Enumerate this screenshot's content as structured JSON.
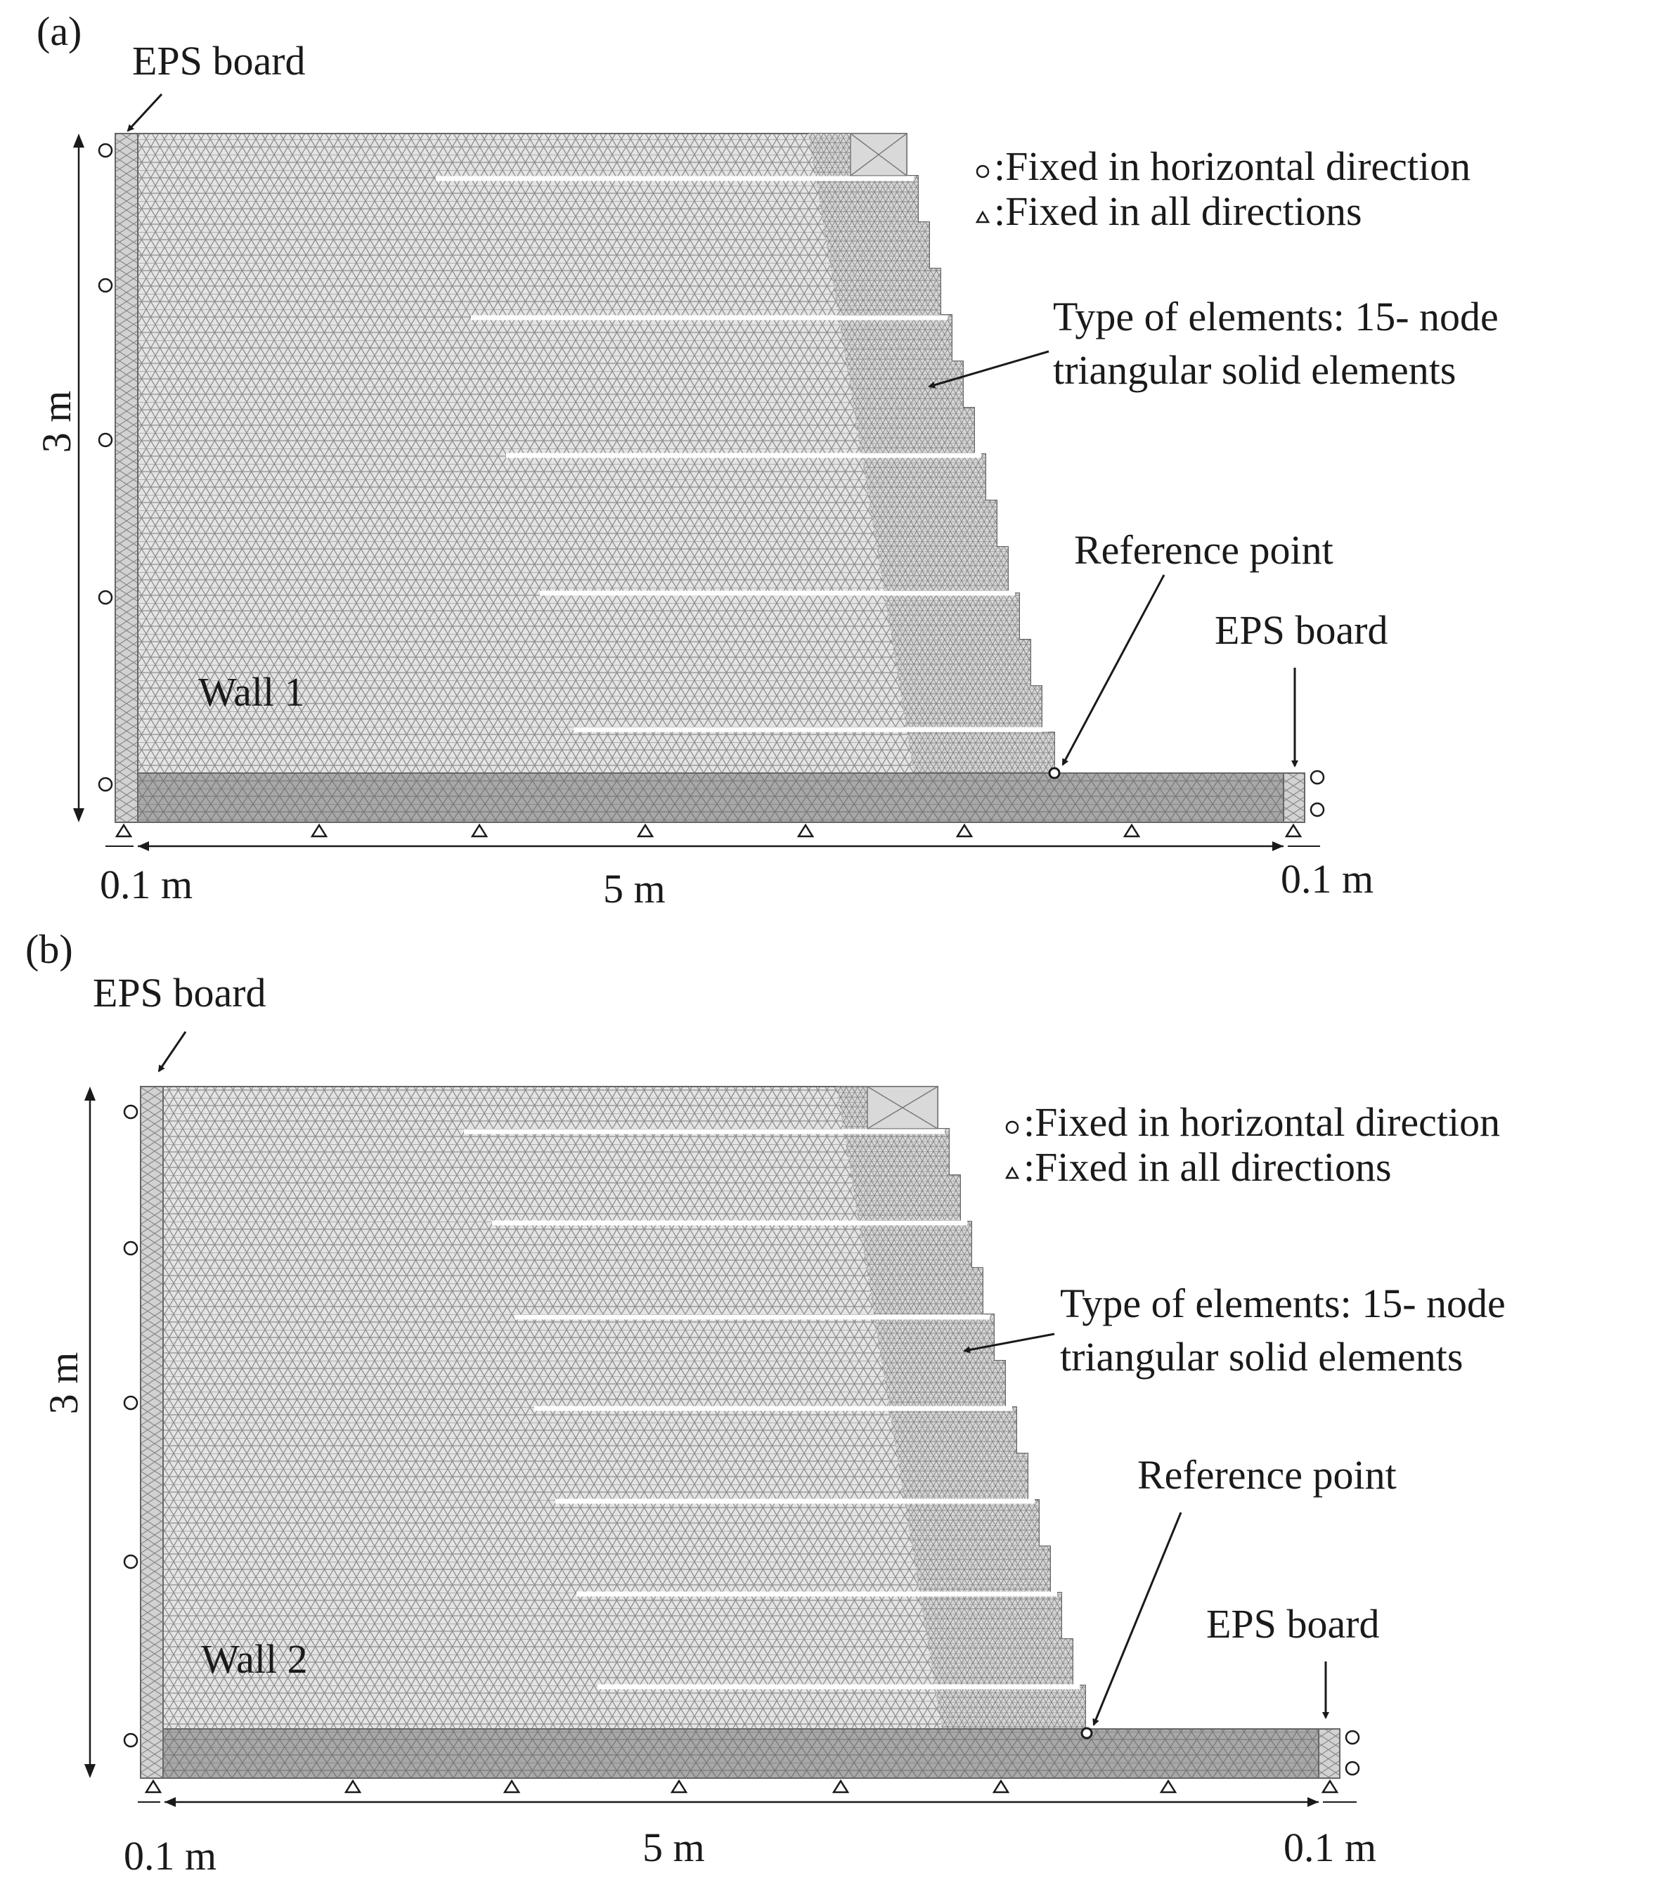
{
  "panels": [
    {
      "id": "a",
      "panel_label": "(a)",
      "eps_board_left_label": "EPS board",
      "eps_board_right_label": "EPS board",
      "legend_circle_text": ":Fixed in horizontal direction",
      "legend_triangle_text": ":Fixed in all directions",
      "element_type_line1": "Type of elements: 15- node",
      "element_type_line2": "triangular solid elements",
      "reference_point_label": "Reference point",
      "wall_label": "Wall 1",
      "height_label": "3 m",
      "left_width_label": "0.1 m",
      "length_label": "5 m",
      "right_width_label": "0.1 m"
    },
    {
      "id": "b",
      "panel_label": "(b)",
      "eps_board_left_label": "EPS board",
      "eps_board_right_label": "EPS board",
      "legend_circle_text": ":Fixed in horizontal direction",
      "legend_triangle_text": ":Fixed in all directions",
      "element_type_line1": "Type of elements: 15- node",
      "element_type_line2": "triangular solid elements",
      "reference_point_label": "Reference point",
      "wall_label": "Wall 2",
      "height_label": "3 m",
      "left_width_label": "0.1 m",
      "length_label": "5 m",
      "right_width_label": "0.1 m"
    }
  ],
  "colors": {
    "backfill_mesh": "#e2e2e2",
    "foundation_mesh": "#a9a9a9",
    "eps_board": "#cfcfcf",
    "mesh_line": "#8a8a8a",
    "reinforcement": "#ffffff",
    "text": "#1a1a1a"
  }
}
